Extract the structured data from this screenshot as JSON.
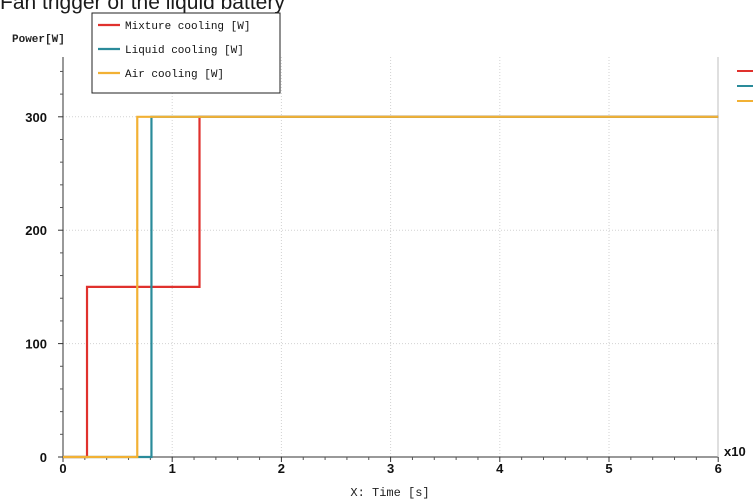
{
  "page": {
    "caption": "Fan trigger of the liquid battery"
  },
  "chart_data": {
    "type": "line",
    "ylabel": "Power[W]",
    "xlabel": "X: Time [s]",
    "x_multiplier": "x10",
    "xlim": [
      0,
      6
    ],
    "ylim": [
      0,
      350
    ],
    "x_ticks": [
      "0",
      "1",
      "2",
      "3",
      "4",
      "5",
      "6"
    ],
    "y_ticks": [
      "0",
      "100",
      "200",
      "300"
    ],
    "grid": true,
    "legend_position": "top-left",
    "series": [
      {
        "name": "Mixture cooling [W]",
        "color": "#e0312d",
        "points": [
          [
            0,
            0
          ],
          [
            0.22,
            0
          ],
          [
            0.22,
            150
          ],
          [
            1.25,
            150
          ],
          [
            1.25,
            300
          ],
          [
            6,
            300
          ]
        ]
      },
      {
        "name": "Liquid cooling [W]",
        "color": "#2a8b9a",
        "points": [
          [
            0,
            0
          ],
          [
            0.81,
            0
          ],
          [
            0.81,
            300
          ],
          [
            6,
            300
          ]
        ]
      },
      {
        "name": "Air cooling [W]",
        "color": "#f2b134",
        "points": [
          [
            0,
            0
          ],
          [
            0.68,
            0
          ],
          [
            0.68,
            300
          ],
          [
            6,
            300
          ]
        ]
      }
    ]
  }
}
